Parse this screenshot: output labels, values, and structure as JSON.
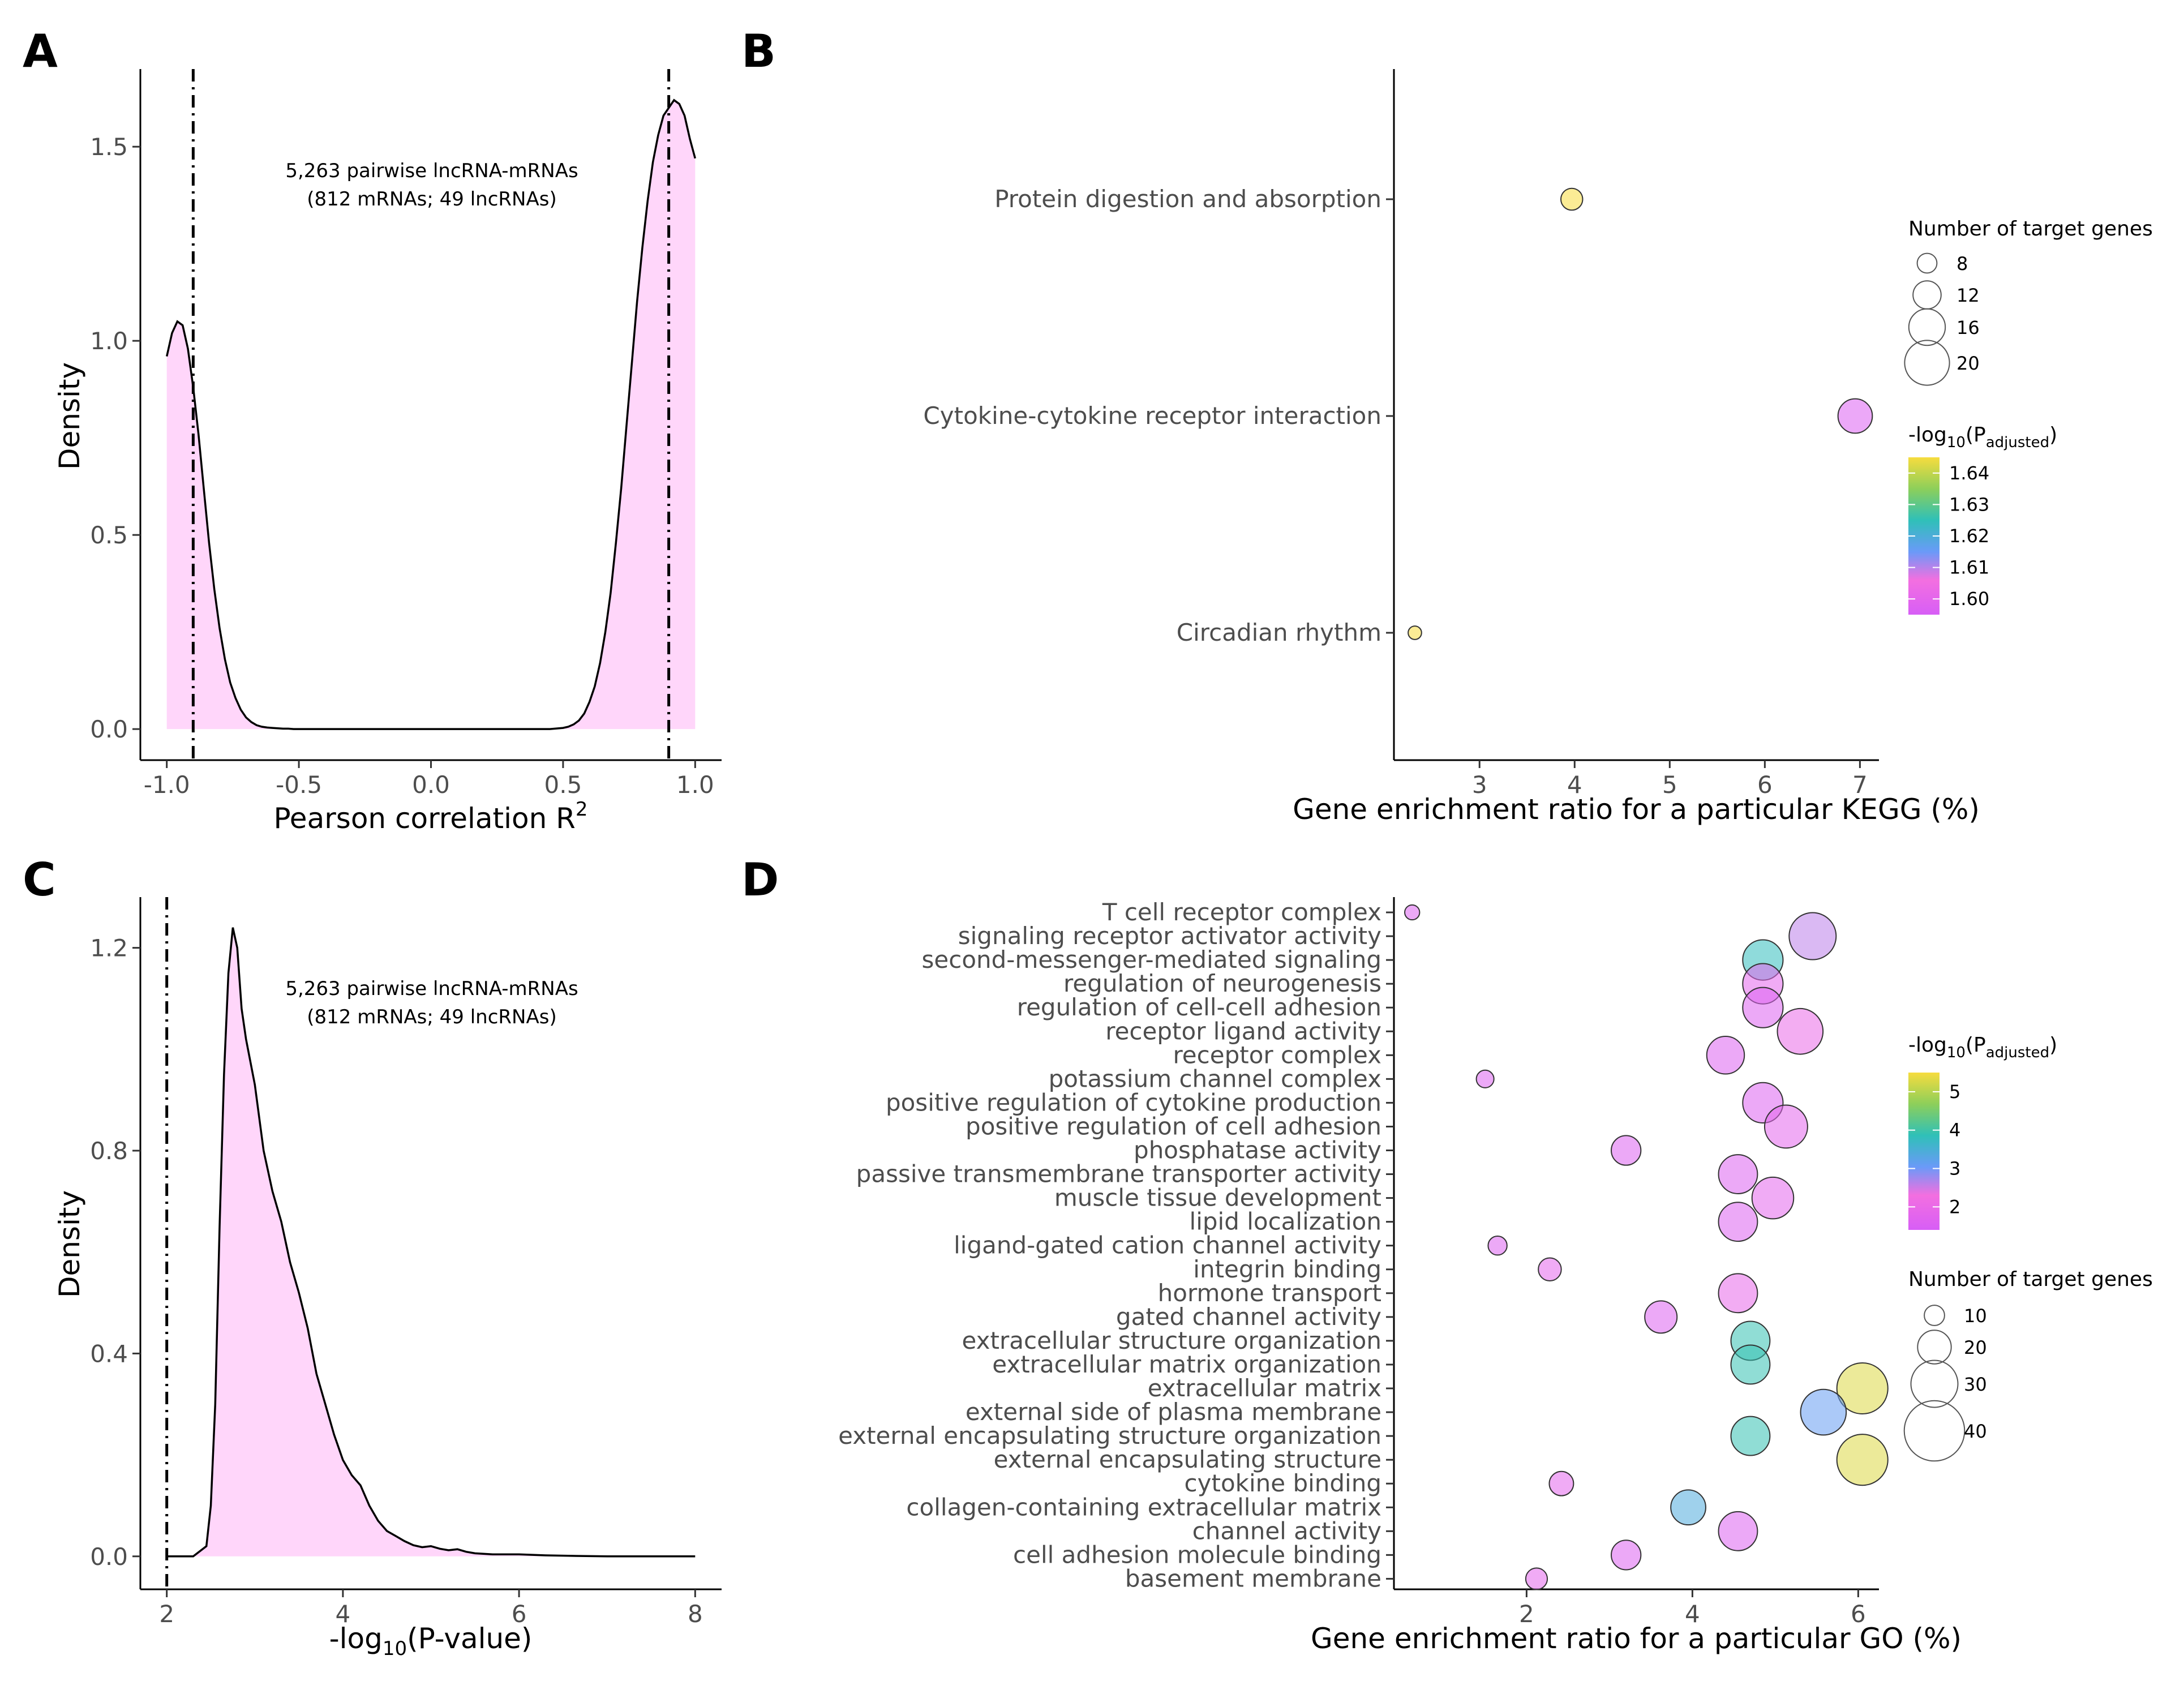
{
  "figure": {
    "panel_labels": [
      "A",
      "B",
      "C",
      "D"
    ]
  },
  "chart_data": [
    {
      "panel": "A",
      "type": "area",
      "title": "",
      "xlabel": "Pearson correlation R",
      "xlabel_sup": "2",
      "ylabel": "Density",
      "xlim": [
        -1.1,
        1.1
      ],
      "ylim": [
        -0.08,
        1.7
      ],
      "xticks": [
        -1.0,
        -0.5,
        0.0,
        0.5,
        1.0
      ],
      "xtick_labels": [
        "-1.0",
        "-0.5",
        "0.0",
        "0.5",
        "1.0"
      ],
      "yticks": [
        0.0,
        0.5,
        1.0,
        1.5
      ],
      "ytick_labels": [
        "0.0",
        "0.5",
        "1.0",
        "1.5"
      ],
      "fill_color": "#ffd6fa",
      "line_color": "#000000",
      "vlines": [
        -0.9,
        0.9
      ],
      "annotation": [
        "5,263 pairwise lncRNA-mRNAs",
        "(812 mRNAs; 49 lncRNAs)"
      ],
      "x": [
        -1.0,
        -0.98,
        -0.96,
        -0.94,
        -0.92,
        -0.9,
        -0.88,
        -0.86,
        -0.84,
        -0.82,
        -0.8,
        -0.78,
        -0.76,
        -0.74,
        -0.72,
        -0.7,
        -0.68,
        -0.66,
        -0.64,
        -0.62,
        -0.6,
        -0.58,
        -0.56,
        -0.54,
        -0.52,
        -0.5,
        -0.45,
        -0.4,
        -0.3,
        -0.2,
        -0.1,
        0.0,
        0.1,
        0.2,
        0.3,
        0.4,
        0.45,
        0.5,
        0.52,
        0.54,
        0.56,
        0.58,
        0.6,
        0.62,
        0.64,
        0.66,
        0.68,
        0.7,
        0.72,
        0.74,
        0.76,
        0.78,
        0.8,
        0.82,
        0.84,
        0.86,
        0.88,
        0.9,
        0.92,
        0.94,
        0.96,
        0.98,
        1.0
      ],
      "y": [
        0.96,
        1.02,
        1.05,
        1.04,
        0.98,
        0.88,
        0.76,
        0.62,
        0.48,
        0.36,
        0.26,
        0.18,
        0.12,
        0.08,
        0.05,
        0.03,
        0.018,
        0.01,
        0.006,
        0.004,
        0.003,
        0.002,
        0.001,
        0.001,
        0.0,
        0.0,
        0.0,
        0.0,
        0.0,
        0.0,
        0.0,
        0.0,
        0.0,
        0.0,
        0.0,
        0.0,
        0.0,
        0.003,
        0.006,
        0.012,
        0.022,
        0.04,
        0.07,
        0.11,
        0.17,
        0.25,
        0.35,
        0.48,
        0.62,
        0.78,
        0.94,
        1.1,
        1.24,
        1.36,
        1.46,
        1.53,
        1.58,
        1.6,
        1.62,
        1.61,
        1.58,
        1.52,
        1.47
      ]
    },
    {
      "panel": "B",
      "type": "scatter",
      "title": "",
      "xlabel": "Gene enrichment ratio for a particular KEGG (%)",
      "ylabel": "",
      "xlim": [
        2.1,
        7.2
      ],
      "xticks": [
        3,
        4,
        5,
        6,
        7
      ],
      "xtick_labels": [
        "3",
        "4",
        "5",
        "6",
        "7"
      ],
      "categories": [
        "Protein digestion and absorption",
        "Cytokine-cytokine receptor interaction",
        "Circadian rhythm"
      ],
      "points": [
        {
          "category": "Protein digestion and absorption",
          "x": 3.97,
          "genes": 9,
          "padj_log": 1.645
        },
        {
          "category": "Cytokine-cytokine receptor interaction",
          "x": 6.95,
          "genes": 15,
          "padj_log": 1.597
        },
        {
          "category": "Circadian rhythm",
          "x": 2.32,
          "genes": 5,
          "padj_log": 1.645
        }
      ],
      "size_legend": {
        "title": "Number of target genes",
        "values": [
          8,
          12,
          16,
          20
        ],
        "labels": [
          "8",
          "12",
          "16",
          "20"
        ]
      },
      "color_legend": {
        "title": "-log",
        "title_sub": "10",
        "title_tail": "(P",
        "title_sub2": "adjusted",
        "title_end": ")",
        "range": [
          1.595,
          1.645
        ],
        "ticks": [
          1.6,
          1.61,
          1.62,
          1.63,
          1.64
        ],
        "tick_labels": [
          "1.60",
          "1.61",
          "1.62",
          "1.63",
          "1.64"
        ]
      }
    },
    {
      "panel": "C",
      "type": "area",
      "title": "",
      "xlabel": "-log",
      "xlabel_sub": "10",
      "xlabel_tail": "(P-value)",
      "ylabel": "Density",
      "xlim": [
        1.7,
        8.3
      ],
      "ylim": [
        -0.065,
        1.3
      ],
      "xticks": [
        2,
        4,
        6,
        8
      ],
      "xtick_labels": [
        "2",
        "4",
        "6",
        "8"
      ],
      "yticks": [
        0.0,
        0.4,
        0.8,
        1.2
      ],
      "ytick_labels": [
        "0.0",
        "0.4",
        "0.8",
        "1.2"
      ],
      "fill_color": "#ffd6fa",
      "line_color": "#000000",
      "vlines": [
        2.0
      ],
      "annotation": [
        "5,263 pairwise lncRNA-mRNAs",
        "(812 mRNAs; 49 lncRNAs)"
      ],
      "x": [
        2.0,
        2.3,
        2.45,
        2.5,
        2.55,
        2.6,
        2.65,
        2.7,
        2.75,
        2.8,
        2.85,
        2.9,
        3.0,
        3.1,
        3.2,
        3.3,
        3.4,
        3.5,
        3.6,
        3.7,
        3.8,
        3.9,
        4.0,
        4.1,
        4.2,
        4.3,
        4.4,
        4.5,
        4.6,
        4.7,
        4.8,
        4.9,
        5.0,
        5.1,
        5.2,
        5.3,
        5.4,
        5.5,
        5.7,
        6.0,
        6.3,
        6.6,
        7.0,
        7.5,
        8.0
      ],
      "y": [
        0.0,
        0.0,
        0.02,
        0.1,
        0.3,
        0.65,
        0.95,
        1.15,
        1.24,
        1.2,
        1.08,
        1.02,
        0.93,
        0.8,
        0.72,
        0.66,
        0.58,
        0.52,
        0.45,
        0.36,
        0.3,
        0.24,
        0.19,
        0.16,
        0.14,
        0.1,
        0.07,
        0.05,
        0.04,
        0.03,
        0.022,
        0.018,
        0.02,
        0.015,
        0.012,
        0.014,
        0.009,
        0.006,
        0.004,
        0.004,
        0.002,
        0.001,
        0.0,
        0.0,
        0.0
      ]
    },
    {
      "panel": "D",
      "type": "scatter",
      "title": "",
      "xlabel": "Gene enrichment ratio for a particular GO (%)",
      "ylabel": "",
      "xlim": [
        0.4,
        6.25
      ],
      "xticks": [
        2,
        4,
        6
      ],
      "xtick_labels": [
        "2",
        "4",
        "6"
      ],
      "categories": [
        "T cell receptor complex",
        "signaling receptor activator activity",
        "second-messenger-mediated signaling",
        "regulation of neurogenesis",
        "regulation of cell-cell adhesion",
        "receptor ligand activity",
        "receptor complex",
        "potassium channel complex",
        "positive regulation of cytokine production",
        "positive regulation of cell adhesion",
        "phosphatase activity",
        "passive transmembrane transporter activity",
        "muscle tissue development",
        "lipid localization",
        "ligand-gated cation channel activity",
        "integrin binding",
        "hormone transport",
        "gated channel activity",
        "extracellular structure organization",
        "extracellular matrix organization",
        "extracellular matrix",
        "external side of plasma membrane",
        "external encapsulating structure organization",
        "external encapsulating structure",
        "cytokine binding",
        "collagen-containing extracellular matrix",
        "channel activity",
        "cell adhesion molecule binding",
        "basement membrane"
      ],
      "points": [
        {
          "category": "T cell receptor complex",
          "x": 0.62,
          "genes": 6,
          "padj_log": 1.6
        },
        {
          "category": "signaling receptor activator activity",
          "x": 5.45,
          "genes": 30,
          "padj_log": 2.6
        },
        {
          "category": "second-messenger-mediated signaling",
          "x": 4.85,
          "genes": 25,
          "padj_log": 3.8
        },
        {
          "category": "regulation of neurogenesis",
          "x": 4.85,
          "genes": 25,
          "padj_log": 1.8
        },
        {
          "category": "regulation of cell-cell adhesion",
          "x": 4.85,
          "genes": 25,
          "padj_log": 1.6
        },
        {
          "category": "receptor ligand activity",
          "x": 5.3,
          "genes": 29,
          "padj_log": 2.0
        },
        {
          "category": "receptor complex",
          "x": 4.4,
          "genes": 23,
          "padj_log": 1.6
        },
        {
          "category": "potassium channel complex",
          "x": 1.5,
          "genes": 8,
          "padj_log": 1.6
        },
        {
          "category": "positive regulation of cytokine production",
          "x": 4.85,
          "genes": 25,
          "padj_log": 1.6
        },
        {
          "category": "positive regulation of cell adhesion",
          "x": 5.13,
          "genes": 27,
          "padj_log": 1.8
        },
        {
          "category": "phosphatase activity",
          "x": 3.2,
          "genes": 17,
          "padj_log": 1.6
        },
        {
          "category": "passive transmembrane transporter activity",
          "x": 4.55,
          "genes": 24,
          "padj_log": 1.6
        },
        {
          "category": "muscle tissue development",
          "x": 4.97,
          "genes": 26,
          "padj_log": 1.8
        },
        {
          "category": "lipid localization",
          "x": 4.55,
          "genes": 24,
          "padj_log": 1.6
        },
        {
          "category": "ligand-gated cation channel activity",
          "x": 1.65,
          "genes": 9,
          "padj_log": 1.6
        },
        {
          "category": "integrin binding",
          "x": 2.28,
          "genes": 12,
          "padj_log": 1.8
        },
        {
          "category": "hormone transport",
          "x": 4.55,
          "genes": 24,
          "padj_log": 1.9
        },
        {
          "category": "gated channel activity",
          "x": 3.62,
          "genes": 19,
          "padj_log": 1.6
        },
        {
          "category": "extracellular structure organization",
          "x": 4.7,
          "genes": 24,
          "padj_log": 3.9
        },
        {
          "category": "extracellular matrix organization",
          "x": 4.7,
          "genes": 24,
          "padj_log": 3.9
        },
        {
          "category": "extracellular matrix",
          "x": 6.05,
          "genes": 33,
          "padj_log": 5.3
        },
        {
          "category": "external side of plasma membrane",
          "x": 5.58,
          "genes": 29,
          "padj_log": 3.1
        },
        {
          "category": "external encapsulating structure organization",
          "x": 4.7,
          "genes": 24,
          "padj_log": 3.9
        },
        {
          "category": "external encapsulating structure",
          "x": 6.05,
          "genes": 33,
          "padj_log": 5.3
        },
        {
          "category": "cytokine binding",
          "x": 2.42,
          "genes": 13,
          "padj_log": 1.8
        },
        {
          "category": "collagen-containing extracellular matrix",
          "x": 3.95,
          "genes": 21,
          "padj_log": 3.4
        },
        {
          "category": "channel activity",
          "x": 4.55,
          "genes": 24,
          "padj_log": 1.6
        },
        {
          "category": "cell adhesion molecule binding",
          "x": 3.2,
          "genes": 17,
          "padj_log": 1.6
        },
        {
          "category": "basement membrane",
          "x": 2.12,
          "genes": 11,
          "padj_log": 1.8
        }
      ],
      "size_legend": {
        "title": "Number of target genes",
        "values": [
          10,
          20,
          30,
          40
        ],
        "labels": [
          "10",
          "20",
          "30",
          "40"
        ]
      },
      "color_legend": {
        "title": "-log",
        "title_sub": "10",
        "title_tail": "(P",
        "title_sub2": "adjusted",
        "title_end": ")",
        "range": [
          1.4,
          5.5
        ],
        "ticks": [
          2,
          3,
          4,
          5
        ],
        "tick_labels": [
          "2",
          "3",
          "4",
          "5"
        ]
      }
    }
  ]
}
